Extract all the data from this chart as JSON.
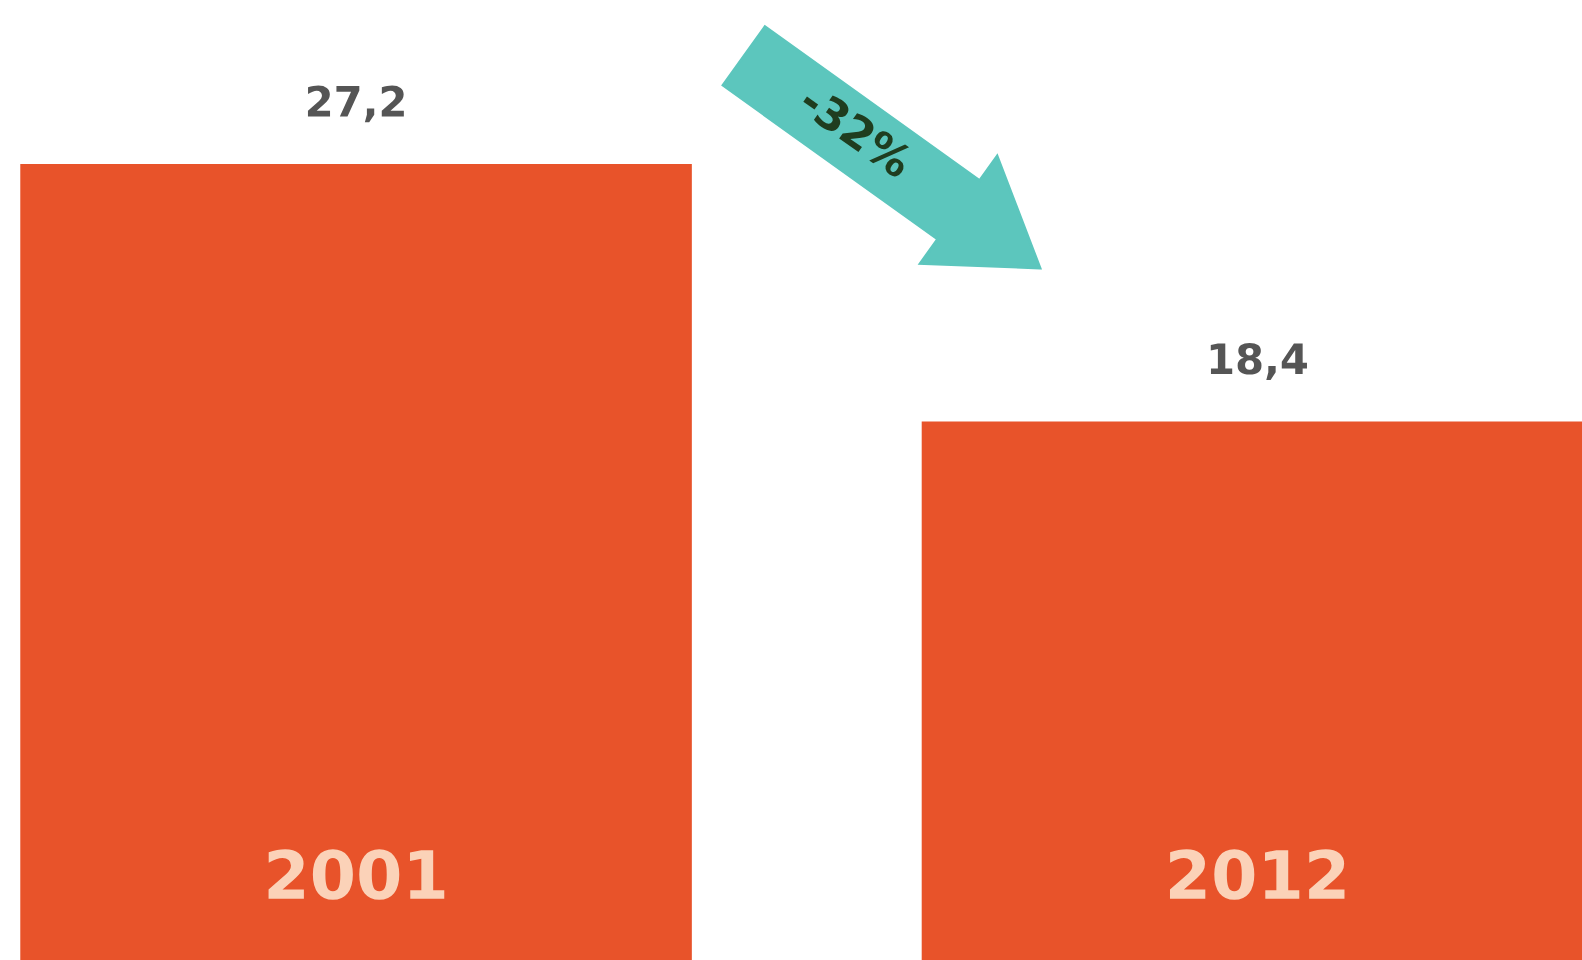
{
  "chart_data": {
    "type": "bar",
    "categories": [
      "2001",
      "2012"
    ],
    "values": [
      27.2,
      18.4
    ],
    "value_labels": [
      "27,2",
      "18,4"
    ],
    "color": "#e8532a",
    "annotations": [
      "-32%"
    ],
    "legend": false
  }
}
